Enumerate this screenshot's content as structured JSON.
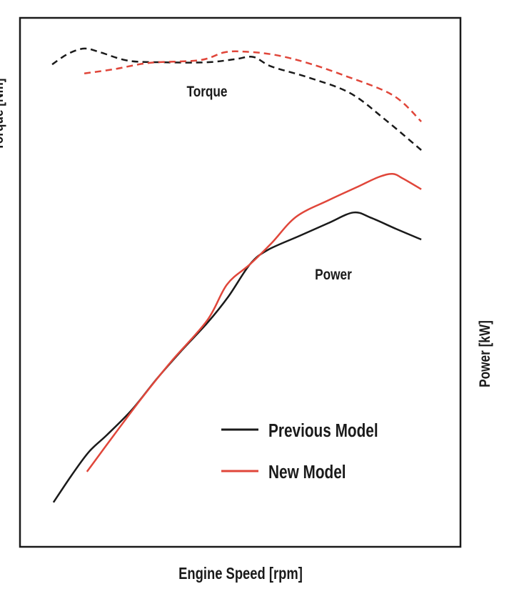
{
  "chart_data": {
    "type": "line",
    "title": "",
    "xlabel": "Engine Speed [rpm]",
    "ylabel_left": "Torque [Nm]",
    "ylabel_right": "Power [kW]",
    "xlim": [
      0,
      100
    ],
    "ylim": [
      0,
      100
    ],
    "grid": false,
    "ticks": "none (relative units)",
    "annotations": [
      "Torque",
      "Power"
    ],
    "legend": {
      "placement": "lower-right",
      "entries": [
        {
          "label": "Previous Model",
          "color": "#1a1a1a"
        },
        {
          "label": "New Model",
          "color": "#e0463a"
        }
      ]
    },
    "series": [
      {
        "name": "Previous Model Power",
        "color": "#1a1a1a",
        "dashed": false,
        "x": [
          7.6,
          11.7,
          15.7,
          19.8,
          25.4,
          31.1,
          36.8,
          42.5,
          47.3,
          52.2,
          56.2,
          63.5,
          70.0,
          75.7,
          79.7,
          85.4,
          91.1
        ],
        "y": [
          8.4,
          13.5,
          18.0,
          21.2,
          25.9,
          31.8,
          37.2,
          42.3,
          47.3,
          53.4,
          56.1,
          58.8,
          61.2,
          63.2,
          62.2,
          60.1,
          58.1
        ]
      },
      {
        "name": "New Model Power",
        "color": "#e0463a",
        "dashed": false,
        "x": [
          15.2,
          21.4,
          27.9,
          34.4,
          42.5,
          47.0,
          52.2,
          57.1,
          62.7,
          70.0,
          76.5,
          81.4,
          84.6,
          87.0,
          91.1
        ],
        "y": [
          14.2,
          21.2,
          28.4,
          35.1,
          42.8,
          49.6,
          53.4,
          57.4,
          62.4,
          65.5,
          68.0,
          69.9,
          70.5,
          69.6,
          67.6
        ]
      },
      {
        "name": "Previous Model Torque",
        "color": "#1a1a1a",
        "dashed": true,
        "x": [
          7.3,
          10.9,
          14.6,
          18.2,
          24.6,
          32.7,
          42.5,
          48.9,
          53.0,
          57.1,
          65.2,
          74.9,
          83.0,
          91.1
        ],
        "y": [
          91.2,
          93.2,
          94.2,
          93.5,
          91.9,
          91.6,
          91.6,
          92.2,
          92.6,
          90.8,
          88.8,
          85.8,
          80.7,
          75.0
        ]
      },
      {
        "name": "New Model Torque",
        "color": "#e0463a",
        "dashed": true,
        "x": [
          14.6,
          21.4,
          29.5,
          40.8,
          46.5,
          51.4,
          57.9,
          65.2,
          73.3,
          84.6,
          91.1
        ],
        "y": [
          89.5,
          90.3,
          91.5,
          92.0,
          93.5,
          93.6,
          93.0,
          91.5,
          89.2,
          85.4,
          80.4
        ]
      }
    ]
  }
}
